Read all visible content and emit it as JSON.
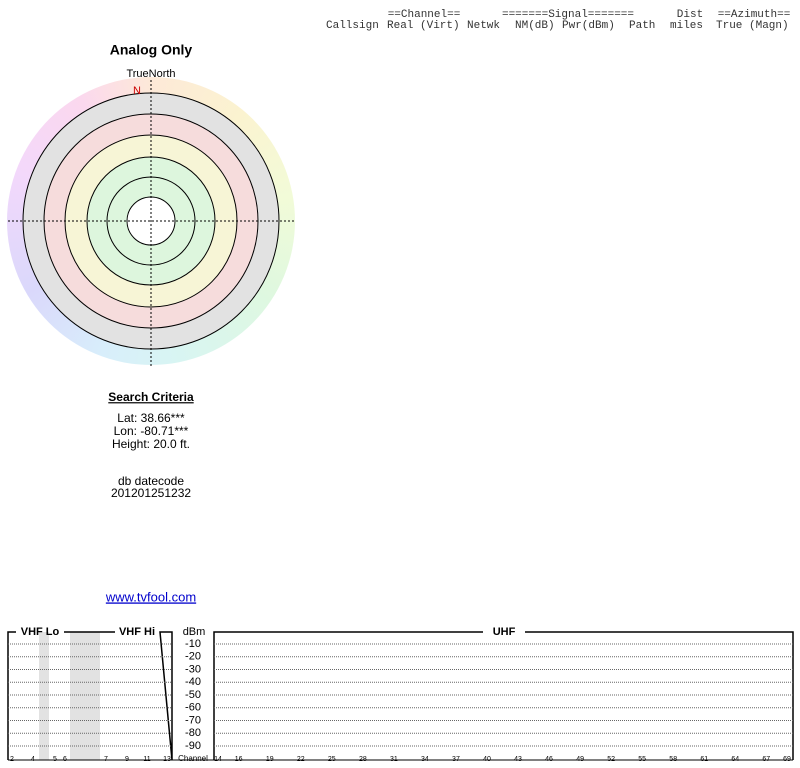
{
  "header": {
    "row1": [
      "==Channel==",
      "=======Signal=======",
      "Dist",
      "==Azimuth=="
    ],
    "row2": [
      "Callsign",
      "Real (Virt)",
      "Netwk",
      "NM(dB)",
      "Pwr(dBm)",
      "Path",
      "miles",
      "True (Magn)"
    ]
  },
  "polar": {
    "title": "Analog Only",
    "north_label": "TrueNorth",
    "north_mark": "N"
  },
  "search": {
    "heading": "Search Criteria",
    "lat": "Lat: 38.66***",
    "lon": "Lon: -80.71***",
    "height": "Height: 20.0 ft.",
    "datecode_label": "db datecode",
    "datecode": "201201251232",
    "link": "www.tvfool.com"
  },
  "spectrum": {
    "vhf_lo": "VHF Lo",
    "vhf_hi": "VHF Hi",
    "uhf": "UHF",
    "unit": "dBm",
    "channel_label": "Channel",
    "dbm_ticks": [
      -10,
      -20,
      -30,
      -40,
      -50,
      -60,
      -70,
      -80,
      -90
    ],
    "vhf_channels": [
      2,
      4,
      5,
      6,
      7,
      9,
      11,
      13
    ],
    "uhf_channels": [
      14,
      16,
      19,
      22,
      25,
      28,
      31,
      34,
      37,
      40,
      43,
      46,
      49,
      52,
      55,
      58,
      61,
      64,
      67,
      69
    ]
  }
}
